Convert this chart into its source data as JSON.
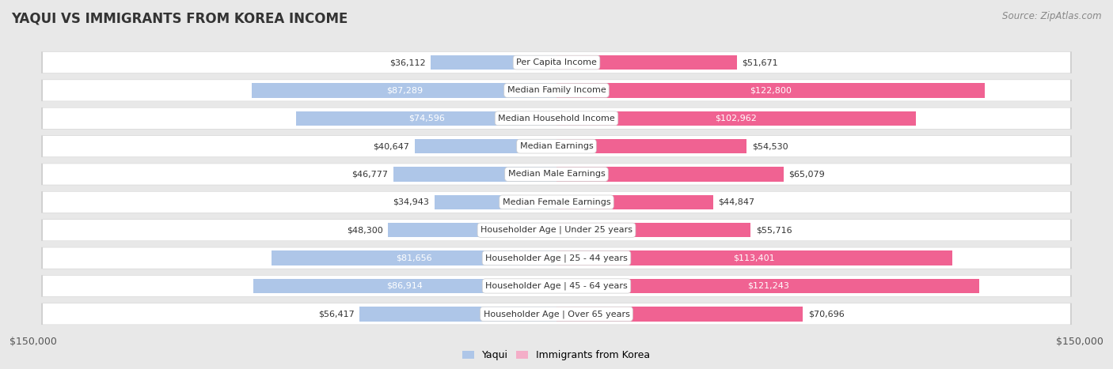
{
  "title": "Yaqui vs Immigrants from Korea Income",
  "source": "Source: ZipAtlas.com",
  "categories": [
    "Per Capita Income",
    "Median Family Income",
    "Median Household Income",
    "Median Earnings",
    "Median Male Earnings",
    "Median Female Earnings",
    "Householder Age | Under 25 years",
    "Householder Age | 25 - 44 years",
    "Householder Age | 45 - 64 years",
    "Householder Age | Over 65 years"
  ],
  "yaqui_values": [
    36112,
    87289,
    74596,
    40647,
    46777,
    34943,
    48300,
    81656,
    86914,
    56417
  ],
  "korea_values": [
    51671,
    122800,
    102962,
    54530,
    65079,
    44847,
    55716,
    113401,
    121243,
    70696
  ],
  "yaqui_labels": [
    "$36,112",
    "$87,289",
    "$74,596",
    "$40,647",
    "$46,777",
    "$34,943",
    "$48,300",
    "$81,656",
    "$86,914",
    "$56,417"
  ],
  "korea_labels": [
    "$51,671",
    "$122,800",
    "$102,962",
    "$54,530",
    "$65,079",
    "$44,847",
    "$55,716",
    "$113,401",
    "$121,243",
    "$70,696"
  ],
  "max_val": 150000,
  "yaqui_color_light": "#aec6e8",
  "yaqui_color_dark": "#5b8fc9",
  "korea_color_light": "#f4aec8",
  "korea_color_dark": "#f06292",
  "bg_color": "#e8e8e8",
  "row_bg_color": "#f2f2f2",
  "row_border_color": "#d0d0d0",
  "threshold_yaqui": 65000,
  "threshold_korea": 80000,
  "legend_yaqui": "Yaqui",
  "legend_korea": "Immigrants from Korea"
}
